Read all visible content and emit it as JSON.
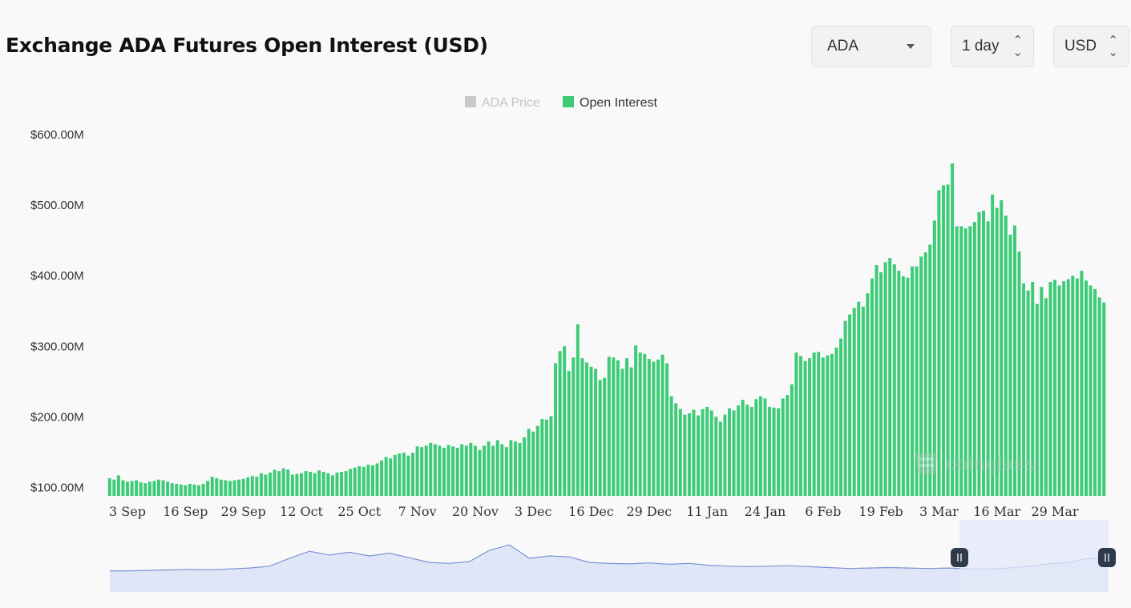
{
  "header": {
    "title": "Exchange ADA Futures Open Interest (USD)",
    "coin_select": "ADA",
    "interval_select": "1 day",
    "currency_select": "USD"
  },
  "watermark": "coinglass",
  "colors": {
    "open_interest": "#3dcb77",
    "price_legend_inactive": "#c9c9c9",
    "navigator_line": "#7b93d6",
    "navigator_fill": "#dfe6f7",
    "navigator_selection": "#e3e8f8",
    "handle": "#2f3a4c"
  },
  "chart_data": {
    "type": "bar",
    "title": "Exchange ADA Futures Open Interest (USD)",
    "legend": [
      {
        "name": "ADA Price",
        "active": false
      },
      {
        "name": "Open Interest",
        "active": true
      }
    ],
    "legend_position": "top-center",
    "y_unit": "M USD",
    "y_ticks": [
      "$100.00M",
      "$200.00M",
      "$300.00M",
      "$400.00M",
      "$500.00M",
      "$600.00M"
    ],
    "ylim": [
      100,
      600
    ],
    "x_ticks": [
      "3 Sep",
      "16 Sep",
      "29 Sep",
      "12 Oct",
      "25 Oct",
      "7 Nov",
      "20 Nov",
      "3 Dec",
      "16 Dec",
      "29 Dec",
      "11 Jan",
      "24 Jan",
      "6 Feb",
      "19 Feb",
      "3 Mar",
      "16 Mar",
      "29 Mar"
    ],
    "grid": false,
    "series": [
      {
        "name": "Open Interest",
        "values": [
          112,
          110,
          116,
          109,
          107,
          108,
          109,
          106,
          105,
          107,
          108,
          110,
          109,
          107,
          105,
          104,
          103,
          102,
          104,
          103,
          102,
          104,
          108,
          114,
          112,
          110,
          109,
          108,
          109,
          110,
          111,
          113,
          115,
          114,
          119,
          117,
          120,
          124,
          122,
          126,
          124,
          117,
          118,
          119,
          122,
          121,
          119,
          123,
          121,
          119,
          116,
          120,
          121,
          122,
          125,
          127,
          129,
          128,
          131,
          130,
          133,
          137,
          142,
          140,
          145,
          147,
          148,
          144,
          148,
          157,
          156,
          158,
          162,
          160,
          158,
          155,
          159,
          157,
          155,
          160,
          158,
          162,
          158,
          152,
          158,
          164,
          158,
          166,
          160,
          156,
          166,
          164,
          162,
          170,
          182,
          178,
          186,
          196,
          195,
          200,
          275,
          292,
          299,
          264,
          283,
          330,
          282,
          276,
          270,
          267,
          251,
          254,
          284,
          283,
          279,
          267,
          282,
          269,
          300,
          290,
          288,
          281,
          277,
          280,
          287,
          275,
          228,
          218,
          210,
          202,
          204,
          209,
          201,
          210,
          213,
          208,
          199,
          192,
          202,
          211,
          208,
          215,
          223,
          216,
          213,
          224,
          228,
          225,
          213,
          212,
          211,
          225,
          230,
          245,
          290,
          285,
          278,
          282,
          290,
          291,
          283,
          286,
          288,
          297,
          310,
          335,
          344,
          353,
          362,
          355,
          374,
          395,
          414,
          404,
          418,
          424,
          415,
          406,
          398,
          396,
          412,
          412,
          426,
          432,
          443,
          477,
          520,
          527,
          528,
          558,
          469,
          469,
          466,
          469,
          475,
          489,
          491,
          476,
          514,
          495,
          506,
          484,
          457,
          470,
          433,
          388,
          378,
          390,
          359,
          383,
          367,
          390,
          393,
          385,
          391,
          394,
          399,
          395,
          406,
          392,
          385,
          380,
          368,
          361
        ],
        "chart_first_category": "30 Aug",
        "note_interval": "1 day"
      }
    ],
    "navigator": {
      "type": "area",
      "selection_start": "28 Feb",
      "selection_end": "4 Apr"
    }
  }
}
